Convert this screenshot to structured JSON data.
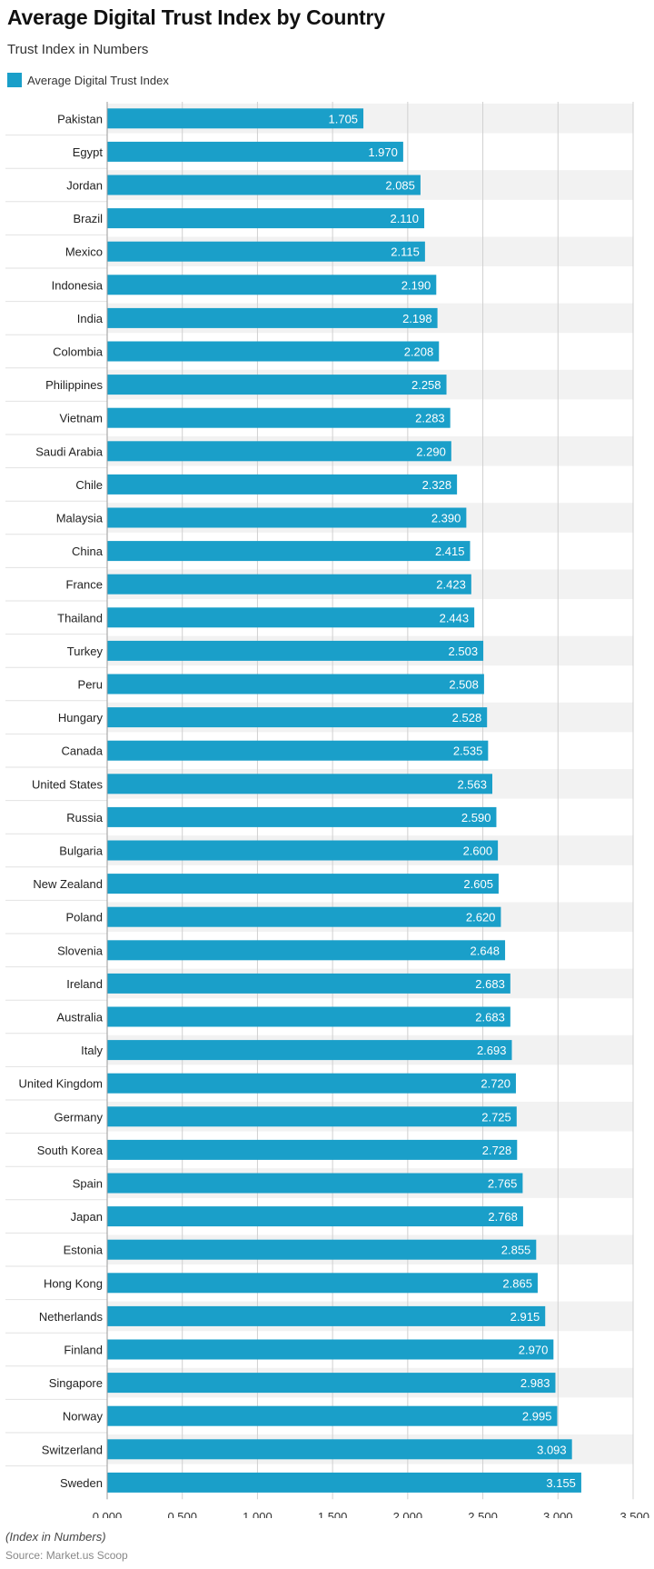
{
  "header": {
    "title": "Average Digital Trust Index by Country",
    "subtitle": "Trust Index in Numbers"
  },
  "legend": {
    "label": "Average Digital Trust Index",
    "color": "#1a9fc9"
  },
  "footer": {
    "note": "(Index in Numbers)",
    "source": "Source: Market.us Scoop"
  },
  "chart_data": {
    "type": "bar",
    "orientation": "horizontal",
    "title": "Average Digital Trust Index by Country",
    "subtitle": "Trust Index in Numbers",
    "xlabel": "",
    "ylabel": "",
    "xlim": [
      0,
      3.5
    ],
    "grid": true,
    "legend_position": "top-left",
    "bar_color": "#1a9fc9",
    "stripe_color": "#f2f2f2",
    "tick_labels": [
      "0.000",
      "0.500",
      "1.000",
      "1.500",
      "2.000",
      "2.500",
      "3.000",
      "3.500"
    ],
    "categories": [
      "Pakistan",
      "Egypt",
      "Jordan",
      "Brazil",
      "Mexico",
      "Indonesia",
      "India",
      "Colombia",
      "Philippines",
      "Vietnam",
      "Saudi Arabia",
      "Chile",
      "Malaysia",
      "China",
      "France",
      "Thailand",
      "Turkey",
      "Peru",
      "Hungary",
      "Canada",
      "United States",
      "Russia",
      "Bulgaria",
      "New Zealand",
      "Poland",
      "Slovenia",
      "Ireland",
      "Australia",
      "Italy",
      "United Kingdom",
      "Germany",
      "South Korea",
      "Spain",
      "Japan",
      "Estonia",
      "Hong Kong",
      "Netherlands",
      "Finland",
      "Singapore",
      "Norway",
      "Switzerland",
      "Sweden"
    ],
    "series": [
      {
        "name": "Average Digital Trust Index",
        "values": [
          1.705,
          1.97,
          2.085,
          2.11,
          2.115,
          2.19,
          2.198,
          2.208,
          2.258,
          2.283,
          2.29,
          2.328,
          2.39,
          2.415,
          2.423,
          2.443,
          2.503,
          2.508,
          2.528,
          2.535,
          2.563,
          2.59,
          2.6,
          2.605,
          2.62,
          2.648,
          2.683,
          2.683,
          2.693,
          2.72,
          2.725,
          2.728,
          2.765,
          2.768,
          2.855,
          2.865,
          2.915,
          2.97,
          2.983,
          2.995,
          3.093,
          3.155
        ],
        "labels": [
          "1.705",
          "1.970",
          "2.085",
          "2.110",
          "2.115",
          "2.190",
          "2.198",
          "2.208",
          "2.258",
          "2.283",
          "2.290",
          "2.328",
          "2.390",
          "2.415",
          "2.423",
          "2.443",
          "2.503",
          "2.508",
          "2.528",
          "2.535",
          "2.563",
          "2.590",
          "2.600",
          "2.605",
          "2.620",
          "2.648",
          "2.683",
          "2.683",
          "2.693",
          "2.720",
          "2.725",
          "2.728",
          "2.765",
          "2.768",
          "2.855",
          "2.865",
          "2.915",
          "2.970",
          "2.983",
          "2.995",
          "3.093",
          "3.155"
        ]
      }
    ]
  }
}
